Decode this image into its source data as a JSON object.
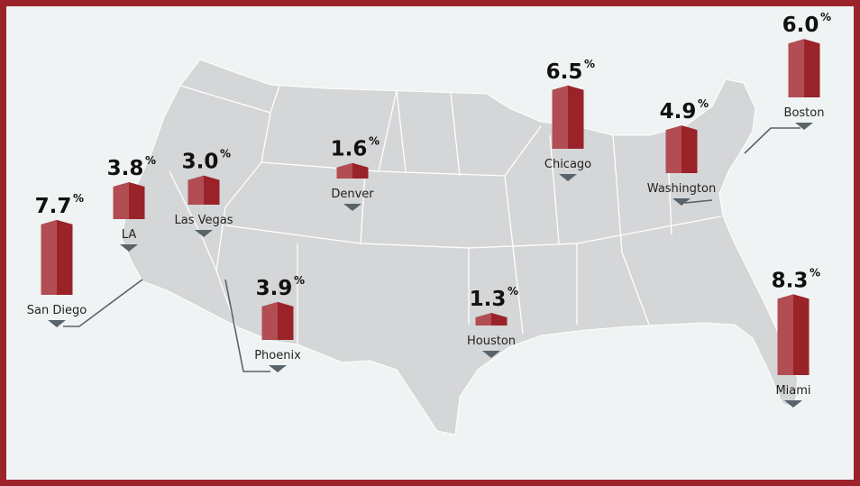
{
  "colors": {
    "border": "#9b2329",
    "background": "#f0f3f4",
    "map": "#d4d6d8",
    "bar_light": "#b14d53",
    "bar_dark": "#9a2329",
    "marker": "#59636a"
  },
  "unit": "%",
  "cities": [
    {
      "name": "San Diego",
      "value": "7.7"
    },
    {
      "name": "LA",
      "value": "3.8"
    },
    {
      "name": "Las Vegas",
      "value": "3.0"
    },
    {
      "name": "Denver",
      "value": "1.6"
    },
    {
      "name": "Phoenix",
      "value": "3.9"
    },
    {
      "name": "Houston",
      "value": "1.3"
    },
    {
      "name": "Chicago",
      "value": "6.5"
    },
    {
      "name": "Washington",
      "value": "4.9"
    },
    {
      "name": "Boston",
      "value": "6.0"
    },
    {
      "name": "Miami",
      "value": "8.3"
    }
  ]
}
